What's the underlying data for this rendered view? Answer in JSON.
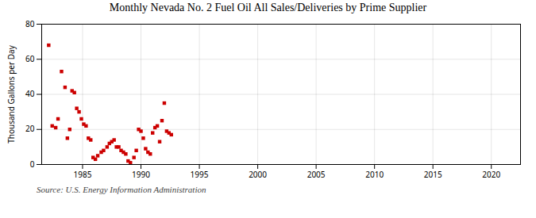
{
  "chart_data": {
    "type": "scatter",
    "title": "Monthly Nevada No. 2 Fuel Oil All Sales/Deliveries by Prime Supplier",
    "ylabel": "Thousand Gallons per Day",
    "source": "Source: U.S. Energy Information Administration",
    "color": "#cc0000",
    "marker": "square",
    "grid": true,
    "xlim": [
      1981.5,
      2022.5
    ],
    "ylim": [
      0,
      80
    ],
    "xticks": [
      1985,
      1990,
      1995,
      2000,
      2005,
      2010,
      2015,
      2020
    ],
    "yticks": [
      0,
      20,
      40,
      60,
      80
    ],
    "x": [
      1982.1,
      1982.4,
      1982.7,
      1982.9,
      1983.2,
      1983.5,
      1983.7,
      1983.9,
      1984.1,
      1984.3,
      1984.5,
      1984.7,
      1984.9,
      1985.1,
      1985.3,
      1985.5,
      1985.7,
      1985.9,
      1986.1,
      1986.3,
      1986.6,
      1986.8,
      1987.1,
      1987.3,
      1987.5,
      1987.7,
      1987.9,
      1988.1,
      1988.3,
      1988.5,
      1988.7,
      1988.9,
      1989.1,
      1989.4,
      1989.6,
      1989.8,
      1990.0,
      1990.2,
      1990.4,
      1990.6,
      1990.8,
      1991.0,
      1991.2,
      1991.4,
      1991.6,
      1991.8,
      1992.0,
      1992.2,
      1992.4,
      1992.6
    ],
    "values": [
      68,
      22,
      21,
      26,
      53,
      44,
      15,
      20,
      42,
      41,
      32,
      30,
      26,
      23,
      22,
      15,
      14,
      4,
      3,
      5,
      7,
      8,
      10,
      12,
      13,
      14,
      10,
      10,
      8,
      7,
      6,
      2,
      1,
      4,
      8,
      20,
      19,
      15,
      9,
      7,
      6,
      18,
      21,
      22,
      13,
      25,
      35,
      19,
      18,
      17
    ]
  }
}
